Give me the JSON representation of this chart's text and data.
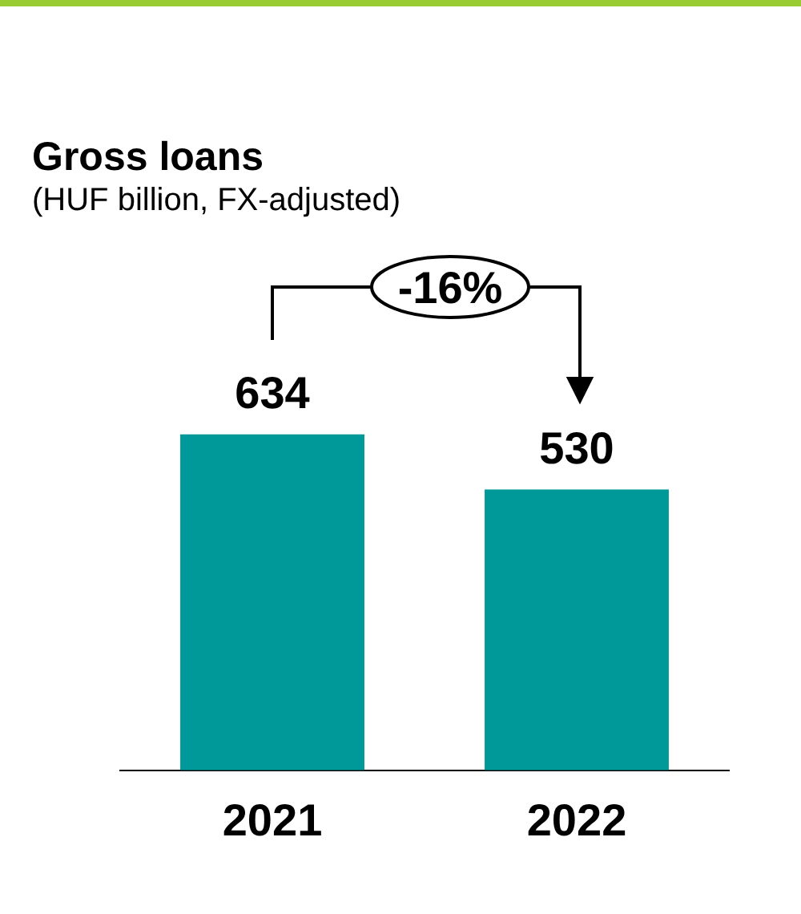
{
  "chart_data": {
    "type": "bar",
    "title": "Gross loans",
    "subtitle": "(HUF billion, FX-adjusted)",
    "categories": [
      "2021",
      "2022"
    ],
    "values": [
      634,
      530
    ],
    "color": "#009999",
    "data_labels": true,
    "grid": false,
    "legend": false,
    "annotations": [
      "-16%"
    ]
  }
}
